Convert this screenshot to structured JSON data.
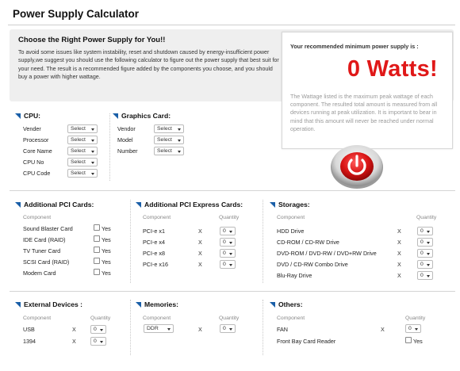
{
  "page": {
    "title": "Power Supply Calculator"
  },
  "intro": {
    "heading": "Choose the Right Power Supply for You!!",
    "body": "To avoid some issues like system instability, reset and shutdown caused by energy-insufficient power supply,we suggest you should use the following calculator to figure out the power supply that best suit for your need. The result is a recommended figure added by the components you choose, and you should buy a power with higher wattage."
  },
  "recommendation": {
    "label": "Your recommended minimum power supply is :",
    "watts": "0 Watts!",
    "note": "The Wattage listed is the maximum peak wattage of each component. The resulted total amount is measured from all devices running at peak utilization. It is important to bear in mind that this amount will never be reached under normal operation."
  },
  "cpu": {
    "title": "CPU:",
    "fields": [
      {
        "label": "Vender",
        "value": "Select"
      },
      {
        "label": "Processor",
        "value": "Select"
      },
      {
        "label": "Core Name",
        "value": "Select"
      },
      {
        "label": "CPU No",
        "value": "Select"
      },
      {
        "label": "CPU Code",
        "value": "Select"
      }
    ]
  },
  "graphics": {
    "title": "Graphics Card:",
    "fields": [
      {
        "label": "Vendor",
        "value": "Select"
      },
      {
        "label": "Model",
        "value": "Select"
      },
      {
        "label": "Number",
        "value": "Select"
      }
    ]
  },
  "pci": {
    "title": "Additional PCI Cards:",
    "component_header": "Component",
    "yes_label": "Yes",
    "items": [
      "Sound Blaster Card",
      "IDE Card (RAID)",
      "TV Tuner Card",
      "SCSI Card (RAID)",
      "Modem Card"
    ]
  },
  "pcie": {
    "title": "Additional PCI Express Cards:",
    "component_header": "Component",
    "quantity_header": "Quantity",
    "x_label": "X",
    "items": [
      {
        "label": "PCI-e x1",
        "qty": "0"
      },
      {
        "label": "PCI-e x4",
        "qty": "0"
      },
      {
        "label": "PCI-e x8",
        "qty": "0"
      },
      {
        "label": "PCI-e x16",
        "qty": "0"
      }
    ]
  },
  "storages": {
    "title": "Storages:",
    "component_header": "Component",
    "quantity_header": "Quantity",
    "x_label": "X",
    "items": [
      {
        "label": "HDD Drive",
        "qty": "0"
      },
      {
        "label": "CD-ROM / CD-RW Drive",
        "qty": "0"
      },
      {
        "label": "DVD-ROM / DVD-RW / DVD+RW Drive",
        "qty": "0"
      },
      {
        "label": "DVD / CD-RW Combo Drive",
        "qty": "0"
      },
      {
        "label": "Blu-Ray Drive",
        "qty": "0"
      }
    ]
  },
  "external": {
    "title": "External Devices :",
    "component_header": "Component",
    "quantity_header": "Quantity",
    "x_label": "X",
    "items": [
      {
        "label": "USB",
        "qty": "0"
      },
      {
        "label": "1394",
        "qty": "0"
      }
    ]
  },
  "memories": {
    "title": "Memories:",
    "component_header": "Component",
    "quantity_header": "Quantity",
    "x_label": "X",
    "type_value": "DDR",
    "qty": "0"
  },
  "others": {
    "title": "Others:",
    "component_header": "Component",
    "quantity_header": "Quantity",
    "x_label": "X",
    "fan_label": "FAN",
    "fan_qty": "0",
    "card_reader_label": "Front Bay Card Reader",
    "yes_label": "Yes"
  },
  "colors": {
    "accent": "#1a5fa8",
    "watts": "#e01818",
    "panel": "#efefef"
  }
}
